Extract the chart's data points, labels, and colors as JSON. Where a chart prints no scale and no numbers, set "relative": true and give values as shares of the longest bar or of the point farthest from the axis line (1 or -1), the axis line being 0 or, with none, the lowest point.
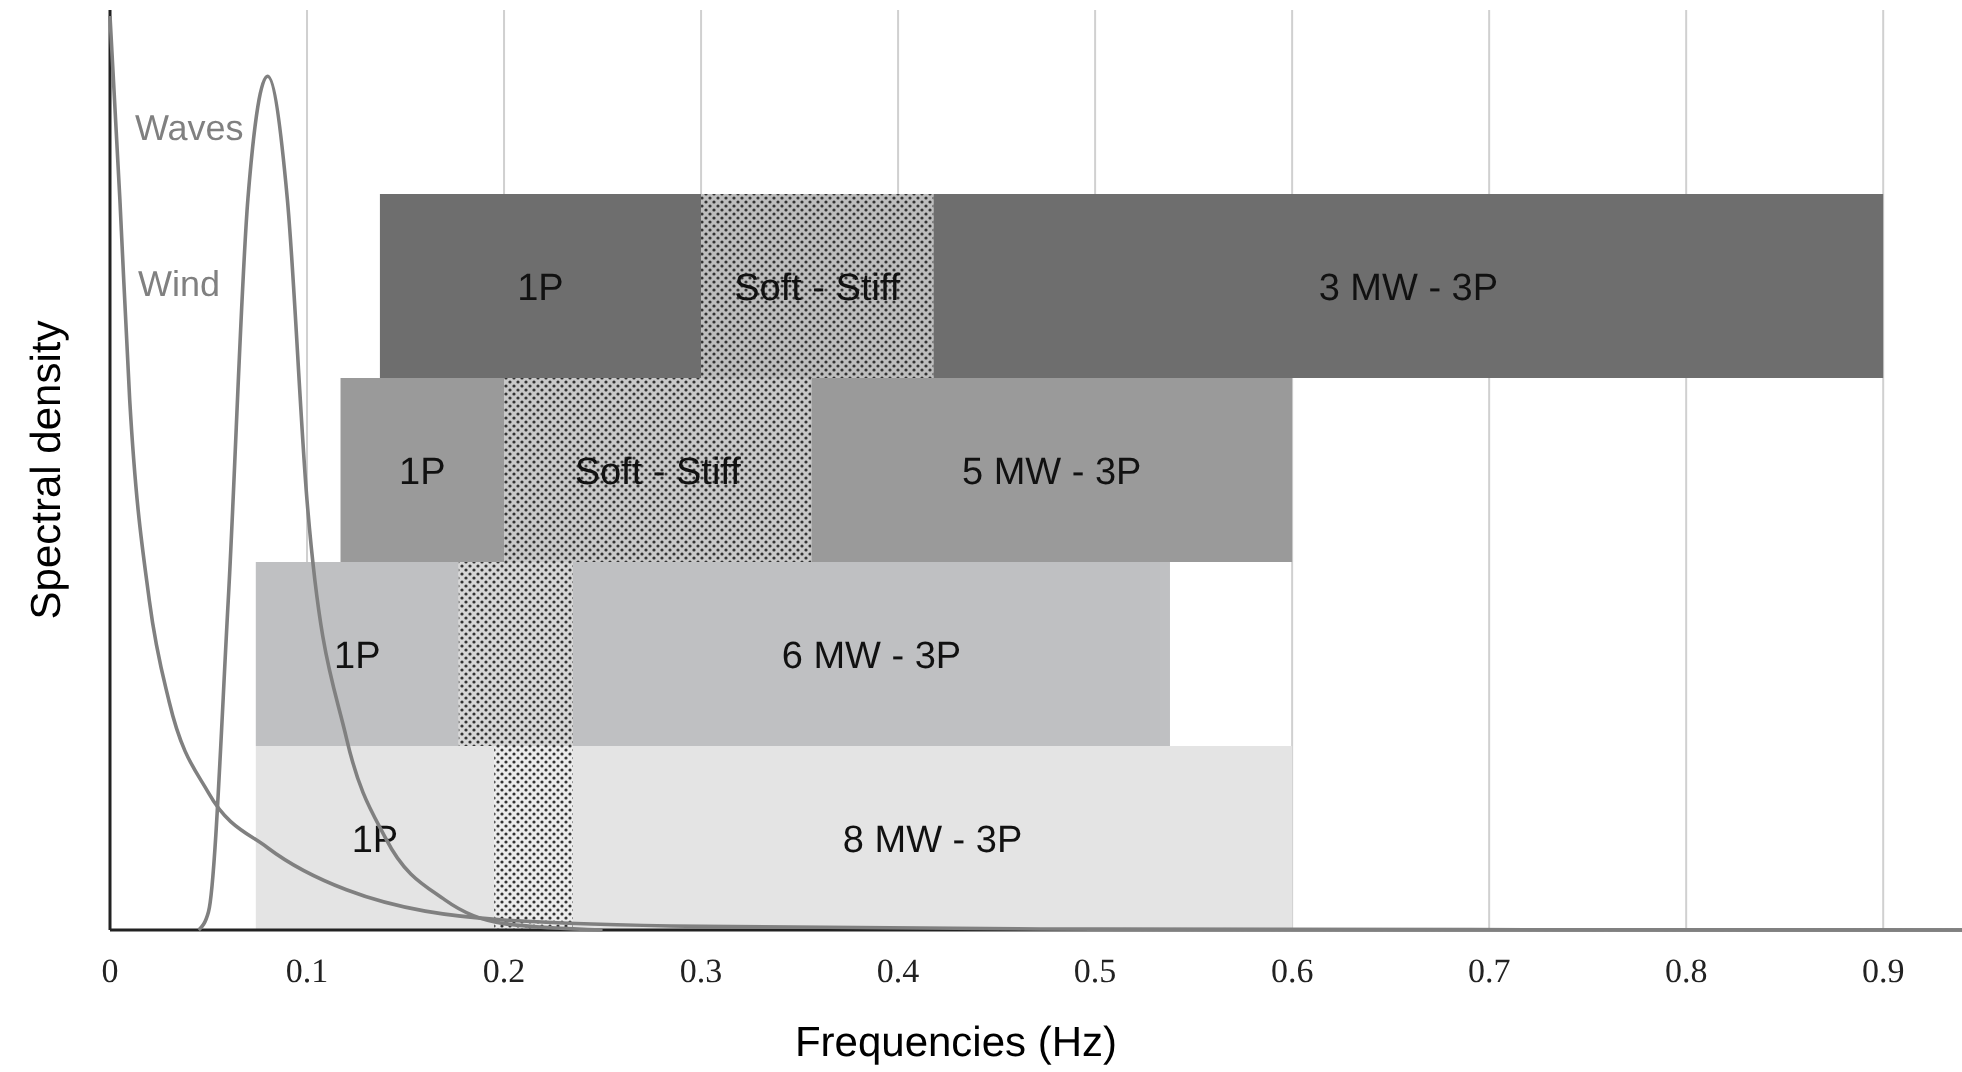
{
  "chart_data": [
    {
      "type": "line",
      "relative": true,
      "ylabel": "Spectral density",
      "xlim": [
        0,
        0.94
      ],
      "tick_labels": false,
      "series": [
        {
          "name": "Wind",
          "color": "#808080",
          "x": [
            0,
            0.005,
            0.01,
            0.02,
            0.03,
            0.05,
            0.08,
            0.12,
            0.2,
            0.3,
            0.5,
            0.94
          ],
          "values": [
            1,
            0.8,
            0.58,
            0.36,
            0.25,
            0.15,
            0.09,
            0.044,
            0.011,
            0.004,
            0.001,
            0
          ]
        },
        {
          "name": "Waves",
          "color": "#808080",
          "x": [
            0.045,
            0.05,
            0.06,
            0.07,
            0.08,
            0.09,
            0.1,
            0.12,
            0.14,
            0.17,
            0.2,
            0.25
          ],
          "values": [
            0,
            0.02,
            0.36,
            0.8,
            0.934,
            0.8,
            0.47,
            0.21,
            0.1,
            0.033,
            0.007,
            0
          ]
        }
      ]
    },
    {
      "type": "bar",
      "orientation": "horizontal",
      "xlabel": "Frequencies (Hz)",
      "xlim": [
        0,
        0.94
      ],
      "xticks": [
        0,
        0.1,
        0.2,
        0.3,
        0.4,
        0.5,
        0.6,
        0.7,
        0.8,
        0.9
      ],
      "grid": "x",
      "tick_labels": "x",
      "categories": [
        null,
        null,
        null,
        null,
        null
      ],
      "series": [
        {
          "name": "1P",
          "color": "#6e6e6e",
          "base": [
            null,
            0.137,
            null,
            null,
            null
          ],
          "values": [
            null,
            0.163,
            null,
            null,
            null
          ]
        },
        {
          "name": "Soft - Stiff",
          "color": "#bdbdbd",
          "line_style": "dotted",
          "base": [
            null,
            0.3,
            null,
            null,
            null
          ],
          "values": [
            null,
            0.118,
            null,
            null,
            null
          ]
        },
        {
          "name": "3 MW - 3P",
          "color": "#6e6e6e",
          "base": [
            null,
            0.418,
            null,
            null,
            null
          ],
          "values": [
            null,
            0.482,
            null,
            null,
            null
          ]
        },
        {
          "name": "1P",
          "color": "#9a9a9a",
          "base": [
            null,
            null,
            0.117,
            null,
            null
          ],
          "values": [
            null,
            null,
            0.083,
            null,
            null
          ]
        },
        {
          "name": "Soft - Stiff",
          "color": "#c8c8c8",
          "line_style": "dotted",
          "base": [
            null,
            null,
            0.2,
            null,
            null
          ],
          "values": [
            null,
            null,
            0.156,
            null,
            null
          ]
        },
        {
          "name": "5 MW - 3P",
          "color": "#9a9a9a",
          "base": [
            null,
            null,
            0.356,
            null,
            null
          ],
          "values": [
            null,
            null,
            0.244,
            null,
            null
          ]
        },
        {
          "name": "1P",
          "color": "#bfc0c2",
          "base": [
            null,
            null,
            null,
            0.074,
            null
          ],
          "values": [
            null,
            null,
            null,
            0.103,
            null
          ]
        },
        {
          "color": "#d6d6d6",
          "line_style": "dotted",
          "base": [
            null,
            null,
            null,
            0.177,
            null
          ],
          "values": [
            null,
            null,
            null,
            0.058,
            null
          ]
        },
        {
          "name": "6 MW - 3P",
          "color": "#bfc0c2",
          "base": [
            null,
            null,
            null,
            0.235,
            null
          ],
          "values": [
            null,
            null,
            null,
            0.303,
            null
          ]
        },
        {
          "name": "1P",
          "color": "#e4e4e4",
          "base": [
            null,
            null,
            null,
            null,
            0.074
          ],
          "values": [
            null,
            null,
            null,
            null,
            0.121
          ]
        },
        {
          "color": "#ececec",
          "line_style": "dotted",
          "base": [
            null,
            null,
            null,
            null,
            0.195
          ],
          "values": [
            null,
            null,
            null,
            null,
            0.04
          ]
        },
        {
          "name": "8 MW - 3P",
          "color": "#e4e4e4",
          "base": [
            null,
            null,
            null,
            null,
            0.235
          ],
          "values": [
            null,
            null,
            null,
            null,
            0.365
          ]
        }
      ]
    }
  ]
}
